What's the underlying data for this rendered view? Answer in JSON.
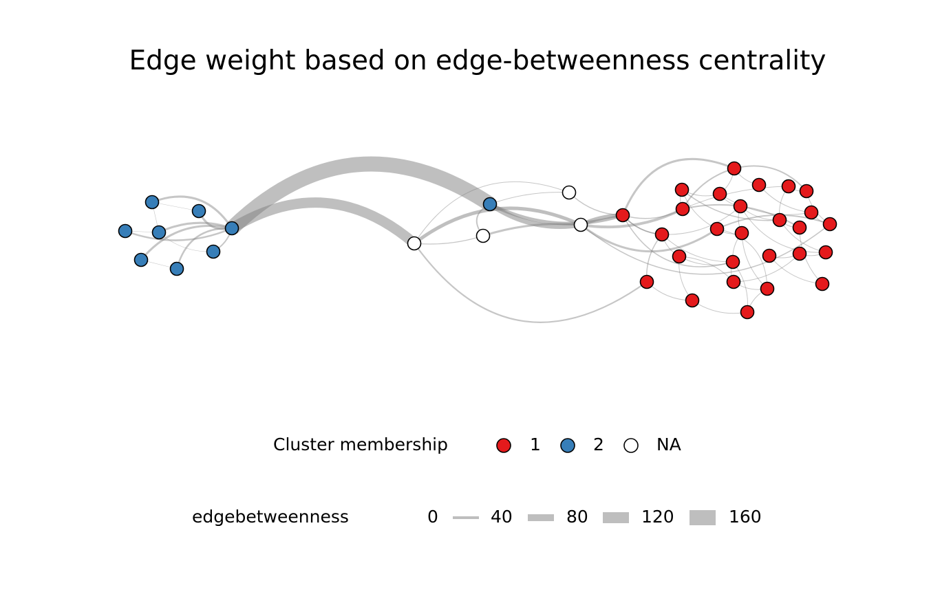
{
  "title": "Edge weight based on edge-betweenness centrality",
  "colors": {
    "cluster_1": "#E41A1C",
    "cluster_2": "#377EB8",
    "cluster_na": "#FFFFFF",
    "node_outline": "#000000",
    "edge": "#808080",
    "legend_edge": "#BEBEBE"
  },
  "legend": {
    "cluster": {
      "title": "Cluster membership",
      "items": [
        {
          "label": "1",
          "color": "#E41A1C"
        },
        {
          "label": "2",
          "color": "#377EB8"
        },
        {
          "label": "NA",
          "color": "#FFFFFF"
        }
      ]
    },
    "edgebetweenness": {
      "title": "edgebetweenness",
      "items": [
        "0",
        "40",
        "80",
        "120",
        "160"
      ]
    }
  }
}
